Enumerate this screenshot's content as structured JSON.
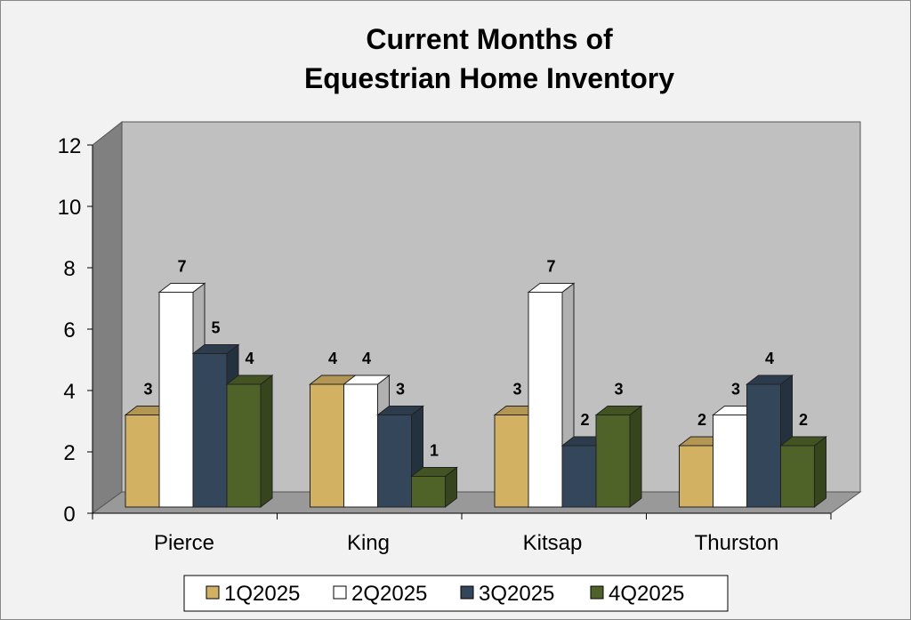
{
  "chart_data": {
    "type": "bar",
    "title": [
      "Current Months of",
      "Equestrian Home Inventory"
    ],
    "xlabel": "",
    "ylabel": "",
    "categories": [
      "Pierce",
      "King",
      "Kitsap",
      "Thurston"
    ],
    "ylim": [
      0,
      12
    ],
    "yticks": [
      "0",
      "2",
      "4",
      "6",
      "8",
      "10",
      "12"
    ],
    "legend_position": "bottom",
    "series": [
      {
        "name": "1Q2025",
        "values": [
          3,
          4,
          3,
          2
        ],
        "color": "#D3B163"
      },
      {
        "name": "2Q2025",
        "values": [
          7,
          4,
          7,
          3
        ],
        "color": "#FFFFFF"
      },
      {
        "name": "3Q2025",
        "values": [
          5,
          3,
          2,
          4
        ],
        "color": "#34465A"
      },
      {
        "name": "4Q2025",
        "values": [
          4,
          1,
          3,
          2
        ],
        "color": "#4F6328"
      }
    ]
  }
}
